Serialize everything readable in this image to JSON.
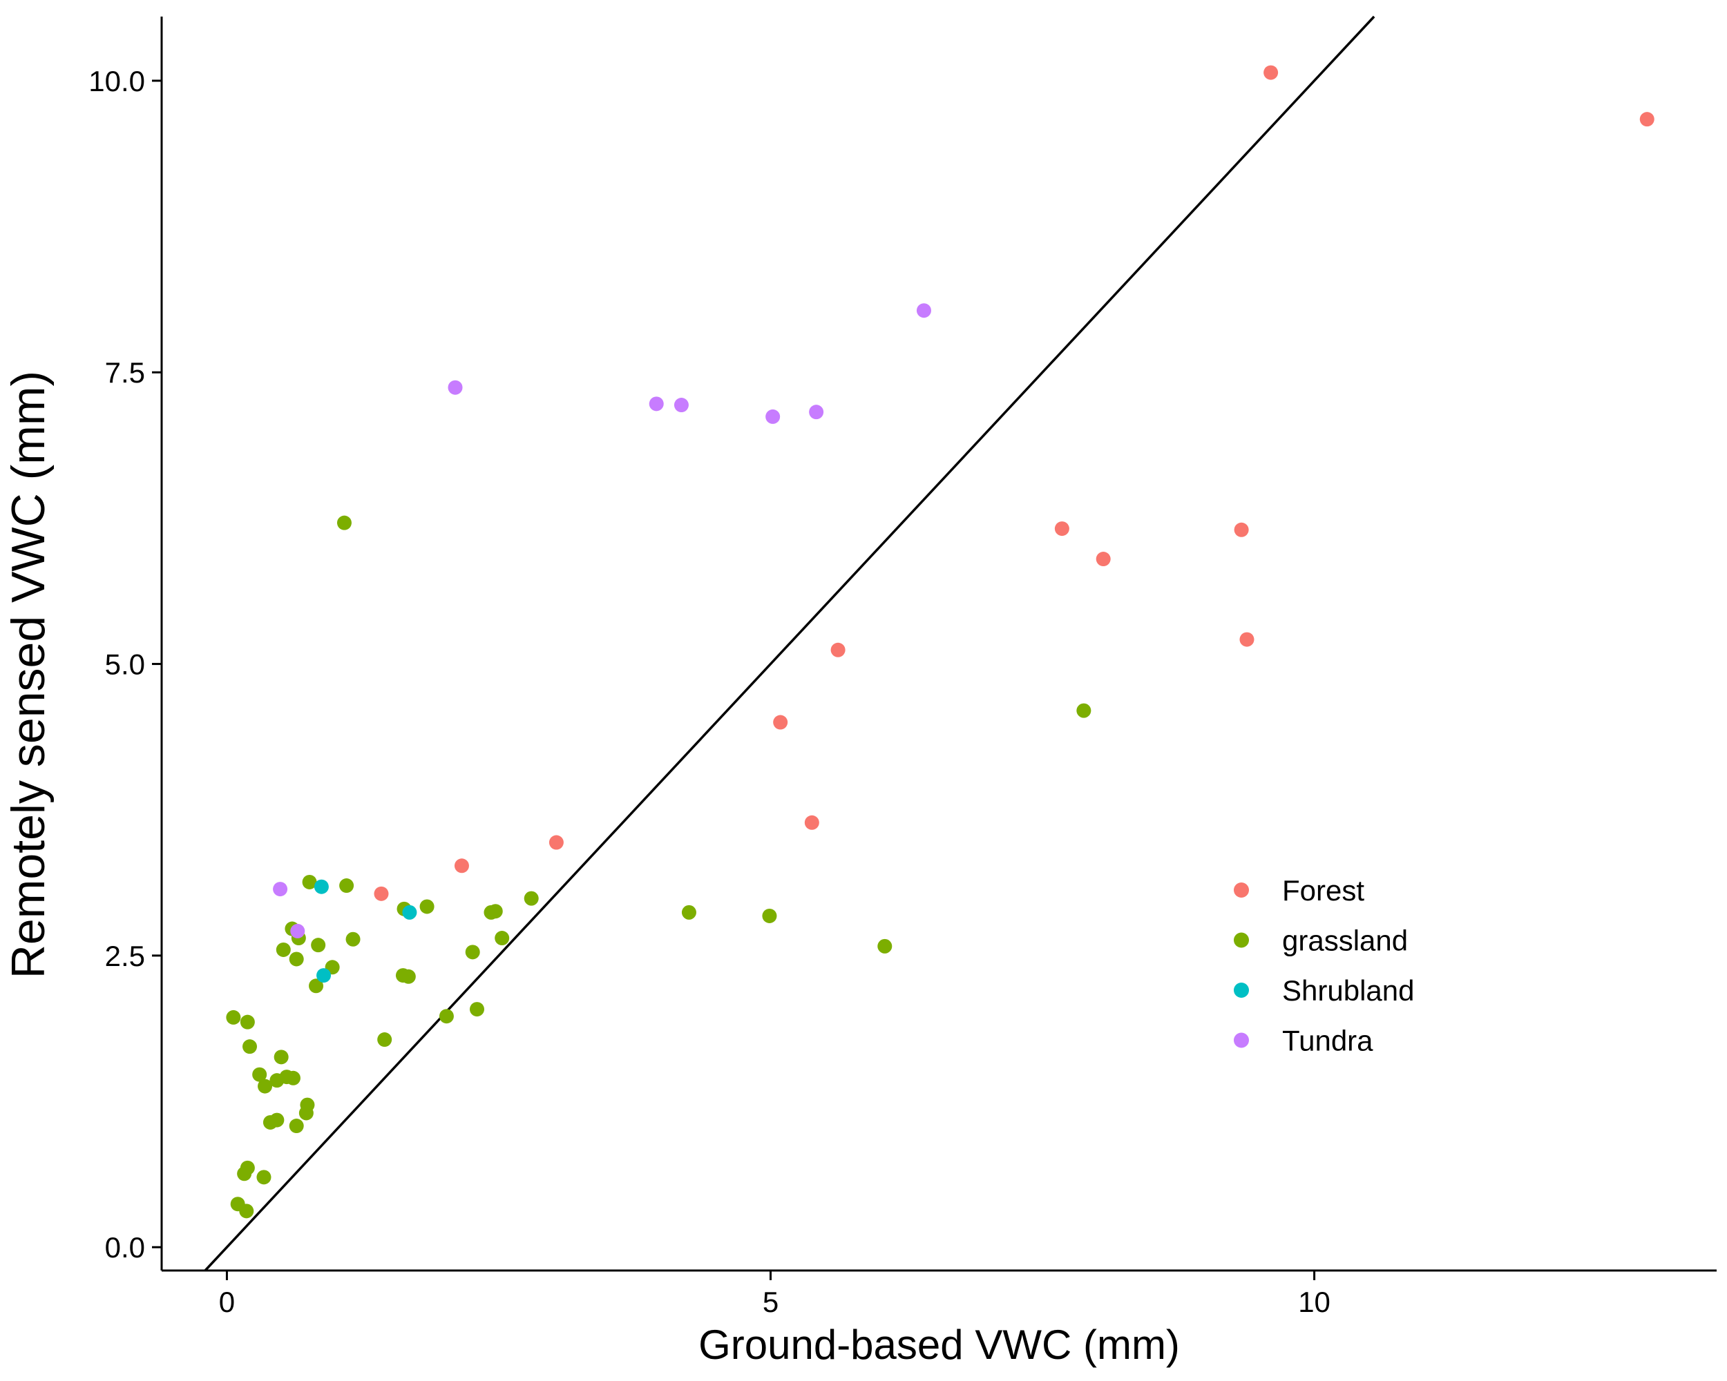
{
  "chart_data": {
    "type": "scatter",
    "xlabel": "Ground-based VWC (mm)",
    "ylabel": "Remotely sensed VWC (mm)",
    "xlim": [
      -0.6,
      13.7
    ],
    "ylim": [
      -0.2,
      10.55
    ],
    "x_ticks": [
      0,
      5,
      10
    ],
    "x_tick_labels": [
      "0",
      "5",
      "10"
    ],
    "y_ticks": [
      0,
      2.5,
      5,
      7.5,
      10
    ],
    "y_tick_labels": [
      "0.0",
      "2.5",
      "5.0",
      "7.5",
      "10.0"
    ],
    "grid": false,
    "legend_position": "right, lower-middle",
    "reference_line": {
      "type": "1:1 line",
      "slope": 1,
      "intercept": 0
    },
    "series": [
      {
        "name": "Forest",
        "color": "#F8766D",
        "points": [
          [
            9.6,
            10.07
          ],
          [
            13.06,
            9.67
          ],
          [
            7.68,
            6.16
          ],
          [
            8.06,
            5.9
          ],
          [
            9.33,
            6.15
          ],
          [
            9.38,
            5.21
          ],
          [
            5.62,
            5.12
          ],
          [
            5.09,
            4.5
          ],
          [
            5.38,
            3.64
          ],
          [
            3.03,
            3.47
          ],
          [
            2.16,
            3.27
          ],
          [
            1.42,
            3.03
          ]
        ]
      },
      {
        "name": "grassland",
        "color": "#7CAE00",
        "points": [
          [
            1.08,
            6.21
          ],
          [
            7.88,
            4.6
          ],
          [
            0.76,
            3.13
          ],
          [
            1.1,
            3.1
          ],
          [
            1.63,
            2.9
          ],
          [
            1.84,
            2.92
          ],
          [
            0.6,
            2.73
          ],
          [
            0.66,
            2.65
          ],
          [
            0.52,
            2.55
          ],
          [
            0.84,
            2.59
          ],
          [
            0.64,
            2.47
          ],
          [
            1.16,
            2.64
          ],
          [
            0.97,
            2.4
          ],
          [
            0.82,
            2.24
          ],
          [
            1.62,
            2.33
          ],
          [
            1.67,
            2.32
          ],
          [
            2.26,
            2.53
          ],
          [
            2.43,
            2.87
          ],
          [
            2.47,
            2.88
          ],
          [
            2.53,
            2.65
          ],
          [
            2.8,
            2.99
          ],
          [
            4.25,
            2.87
          ],
          [
            4.99,
            2.84
          ],
          [
            6.05,
            2.58
          ],
          [
            1.45,
            1.78
          ],
          [
            2.02,
            1.98
          ],
          [
            2.3,
            2.04
          ],
          [
            0.06,
            1.97
          ],
          [
            0.19,
            1.93
          ],
          [
            0.21,
            1.72
          ],
          [
            0.5,
            1.63
          ],
          [
            0.3,
            1.48
          ],
          [
            0.55,
            1.46
          ],
          [
            0.61,
            1.45
          ],
          [
            0.46,
            1.43
          ],
          [
            0.35,
            1.38
          ],
          [
            0.74,
            1.22
          ],
          [
            0.73,
            1.15
          ],
          [
            0.4,
            1.07
          ],
          [
            0.46,
            1.09
          ],
          [
            0.64,
            1.04
          ],
          [
            0.19,
            0.68
          ],
          [
            0.16,
            0.63
          ],
          [
            0.34,
            0.6
          ],
          [
            0.1,
            0.37
          ],
          [
            0.18,
            0.31
          ]
        ]
      },
      {
        "name": "Shrubland",
        "color": "#00BFC4",
        "points": [
          [
            0.87,
            3.09
          ],
          [
            1.68,
            2.87
          ],
          [
            0.89,
            2.33
          ]
        ]
      },
      {
        "name": "Tundra",
        "color": "#C77CFF",
        "points": [
          [
            6.41,
            8.03
          ],
          [
            2.1,
            7.37
          ],
          [
            3.95,
            7.23
          ],
          [
            4.18,
            7.22
          ],
          [
            5.02,
            7.12
          ],
          [
            5.42,
            7.16
          ],
          [
            0.49,
            3.07
          ],
          [
            0.65,
            2.71
          ]
        ]
      }
    ]
  }
}
